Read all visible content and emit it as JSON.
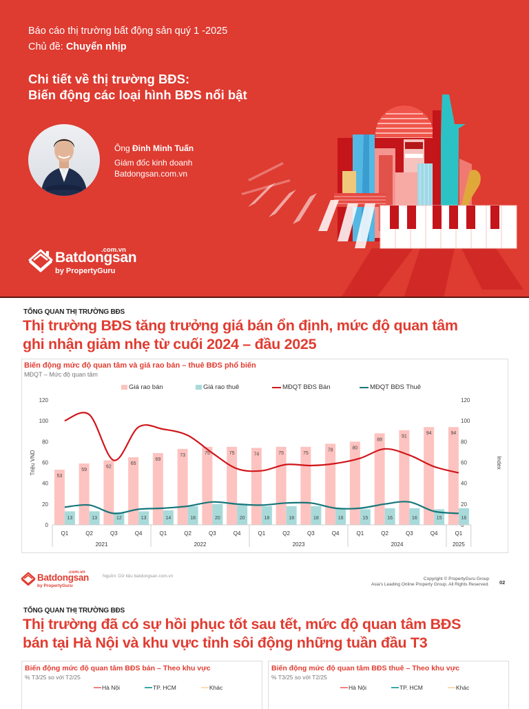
{
  "cover": {
    "report_title": "Báo cáo thị trường bất động sản quý 1 -2025",
    "topic_label": "Chủ đề: ",
    "topic_value": "Chuyển nhịp",
    "headline_line1": "Chi tiết về thị trường BĐS:",
    "headline_line2": "Biến động các loại hình BĐS nổi bật",
    "speaker": {
      "prefix": "Ông ",
      "name": "Đinh Minh Tuấn",
      "role": "Giám đốc kinh doanh",
      "company": "Batdongsan.com.vn"
    },
    "brand": {
      "wordmark": "Batdongsan",
      "domain": ".com.vn",
      "byline": "by PropertyGuru",
      "icon": "house-stack-logo-icon"
    },
    "colors": {
      "background": "#de3b31",
      "text": "#ffffff"
    }
  },
  "slide2": {
    "kicker": "TỔNG QUAN THỊ TRƯỜNG BĐS",
    "title_line1": "Thị trường BĐS tăng trưởng giá bán ổn định, mức độ quan tâm",
    "title_line2": "ghi nhận giảm nhẹ từ cuối 2024 – đầu 2025",
    "footer": {
      "source": "Nguồn: Dữ liệu batdongsan.com.vn",
      "copyright_line1": "Copyright © PropertyGuru Group",
      "copyright_line2": "Asia's Leading Online Property Group. All Rights Reserved.",
      "page_number": "02",
      "logo_wordmark": "Batdongsan",
      "logo_domain": ".com.vn",
      "logo_byline": "by PropertyGuru"
    }
  },
  "chart_data": {
    "type": "bar",
    "title": "Biến động mức độ quan tâm và giá rao bán – thuê BĐS phổ biến",
    "subtitle": "MĐQT – Mức độ quan tâm",
    "xlabel": "",
    "ylabel": "Triệu VND",
    "y2label": "Index",
    "ylim": [
      0,
      120
    ],
    "y2lim": [
      0,
      120
    ],
    "yticks": [
      0,
      20,
      40,
      60,
      80,
      100,
      120
    ],
    "grid": false,
    "legend_position": "top",
    "categories": [
      "Q1",
      "Q2",
      "Q3",
      "Q4",
      "Q1",
      "Q2",
      "Q3",
      "Q4",
      "Q1",
      "Q2",
      "Q3",
      "Q4",
      "Q1",
      "Q2",
      "Q3",
      "Q4",
      "Q1"
    ],
    "year_groups": [
      {
        "label": "2021",
        "span": 4
      },
      {
        "label": "2022",
        "span": 4
      },
      {
        "label": "2023",
        "span": 4
      },
      {
        "label": "2024",
        "span": 4
      },
      {
        "label": "2025",
        "span": 1
      }
    ],
    "series": [
      {
        "name": "Giá rao bán",
        "kind": "bar",
        "axis": "left",
        "color": "#fdc3c0",
        "values": [
          53,
          59,
          62,
          65,
          69,
          73,
          75,
          75,
          74,
          75,
          75,
          78,
          80,
          88,
          91,
          94,
          94
        ]
      },
      {
        "name": "Giá rao thuê",
        "kind": "bar",
        "axis": "left",
        "color": "#a8dada",
        "values": [
          13,
          13,
          12,
          13,
          14,
          18,
          20,
          20,
          18,
          18,
          18,
          16,
          15,
          16,
          16,
          15,
          16
        ]
      },
      {
        "name": "MĐQT BĐS Bán",
        "kind": "line",
        "axis": "right",
        "color": "#d0161b",
        "values": [
          100,
          106,
          62,
          94,
          92,
          86,
          69,
          54,
          52,
          58,
          57,
          59,
          64,
          73,
          67,
          56,
          50
        ]
      },
      {
        "name": "MĐQT BĐS Thuê",
        "kind": "line",
        "axis": "right",
        "color": "#15767a",
        "values": [
          17,
          19,
          11,
          15,
          16,
          18,
          22,
          20,
          19,
          21,
          21,
          16,
          16,
          20,
          22,
          13,
          11
        ]
      }
    ]
  },
  "slide3": {
    "kicker": "TỔNG QUAN THỊ TRƯỜNG BĐS",
    "title_line1": "Thị trường đã có sự hồi phục tốt sau tết, mức độ quan tâm BĐS",
    "title_line2": "bán tại Hà Nội và khu vực tỉnh sôi động những tuần đầu T3",
    "cards": [
      {
        "title": "Biến động mức độ quan tâm BĐS bán – Theo khu vực",
        "subtitle": "% T3/25 so với T2/25",
        "legend": [
          {
            "label": "Hà Nội",
            "color": "#f08080"
          },
          {
            "label": "TP. HCM",
            "color": "#3aa6a6"
          },
          {
            "label": "Khác",
            "color": "#fcd9b8"
          }
        ]
      },
      {
        "title": "Biến động mức độ quan tâm BĐS thuê – Theo khu vực",
        "subtitle": "% T3/25 so với T2/25",
        "legend": [
          {
            "label": "Hà Nội",
            "color": "#f08080"
          },
          {
            "label": "TP. HCM",
            "color": "#3aa6a6"
          },
          {
            "label": "Khác",
            "color": "#fcd9b8"
          }
        ]
      }
    ]
  }
}
